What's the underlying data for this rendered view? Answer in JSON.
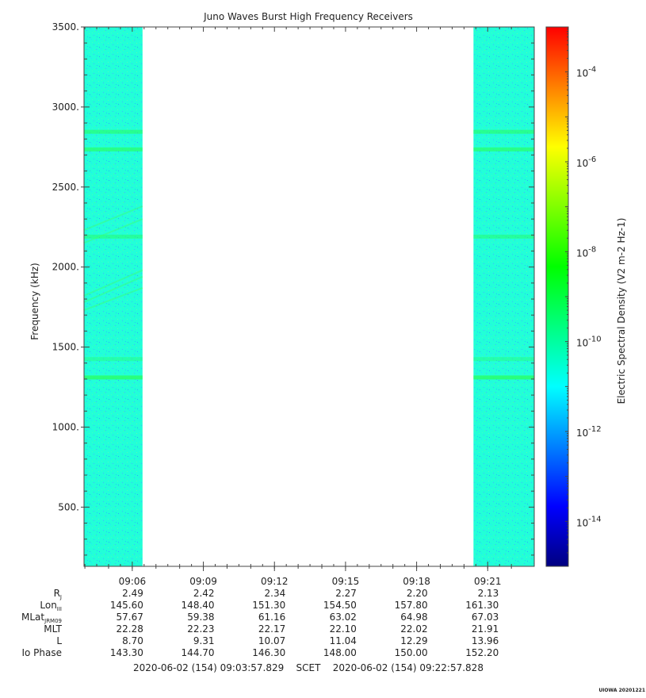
{
  "chart_data": {
    "type": "heatmap",
    "title": "Juno Waves Burst High Frequency Receivers",
    "ylabel": "Frequency (kHz)",
    "ylim": [
      130,
      3500
    ],
    "y_ticks": [
      500,
      1000,
      1500,
      2000,
      2500,
      3000,
      3500
    ],
    "y_tick_labels": [
      "500.",
      "1000.",
      "1500.",
      "2000.",
      "2500.",
      "3000.",
      "3500."
    ],
    "x_ticks": [
      "09:06",
      "09:09",
      "09:12",
      "09:15",
      "09:18",
      "09:21"
    ],
    "x_range": [
      "09:03:57.829",
      "09:22:57.828"
    ],
    "data_blocks": [
      {
        "start": "09:03:57",
        "end": "09:06:26"
      },
      {
        "start": "09:20:24",
        "end": "09:22:57"
      }
    ],
    "emission_bands_khz": [
      {
        "freq": 2845,
        "intensity": 0.55
      },
      {
        "freq": 2735,
        "intensity": 0.6
      },
      {
        "freq": 2190,
        "intensity": 0.45
      },
      {
        "freq": 1425,
        "intensity": 0.35
      },
      {
        "freq": 1310,
        "intensity": 0.7
      }
    ],
    "colorbar": {
      "label": "Electric Spectral Density (V2 m-2 Hz-1)",
      "scale": "log",
      "range": [
        1e-15,
        0.001
      ],
      "tick_exponents": [
        "-4",
        "-6",
        "-8",
        "-10",
        "-12",
        "-14"
      ],
      "colors": [
        "#000080",
        "#0000ff",
        "#0080ff",
        "#00ffff",
        "#00ff80",
        "#00ff00",
        "#80ff00",
        "#ffff00",
        "#ff8000",
        "#ff0000"
      ]
    },
    "ephemeris": {
      "rows": [
        {
          "label": "R",
          "sub": "J",
          "values": [
            "2.49",
            "2.42",
            "2.34",
            "2.27",
            "2.20",
            "2.13"
          ]
        },
        {
          "label": "Lon",
          "sub": "III",
          "values": [
            "145.60",
            "148.40",
            "151.30",
            "154.50",
            "157.80",
            "161.30"
          ]
        },
        {
          "label": "MLat",
          "sub": "JRM09",
          "values": [
            "57.67",
            "59.38",
            "61.16",
            "63.02",
            "64.98",
            "67.03"
          ]
        },
        {
          "label": "MLT",
          "sub": "",
          "values": [
            "22.28",
            "22.23",
            "22.17",
            "22.10",
            "22.02",
            "21.91"
          ]
        },
        {
          "label": "L",
          "sub": "",
          "values": [
            "8.70",
            "9.31",
            "10.07",
            "11.04",
            "12.29",
            "13.96"
          ]
        },
        {
          "label": "Io Phase",
          "sub": "",
          "values": [
            "143.30",
            "144.70",
            "146.30",
            "148.00",
            "150.00",
            "152.20"
          ]
        }
      ]
    },
    "time_range_text": "2020-06-02 (154) 09:03:57.829    SCET    2020-06-02 (154) 09:22:57.828",
    "footer_tag": "UIOWA 20201221"
  }
}
